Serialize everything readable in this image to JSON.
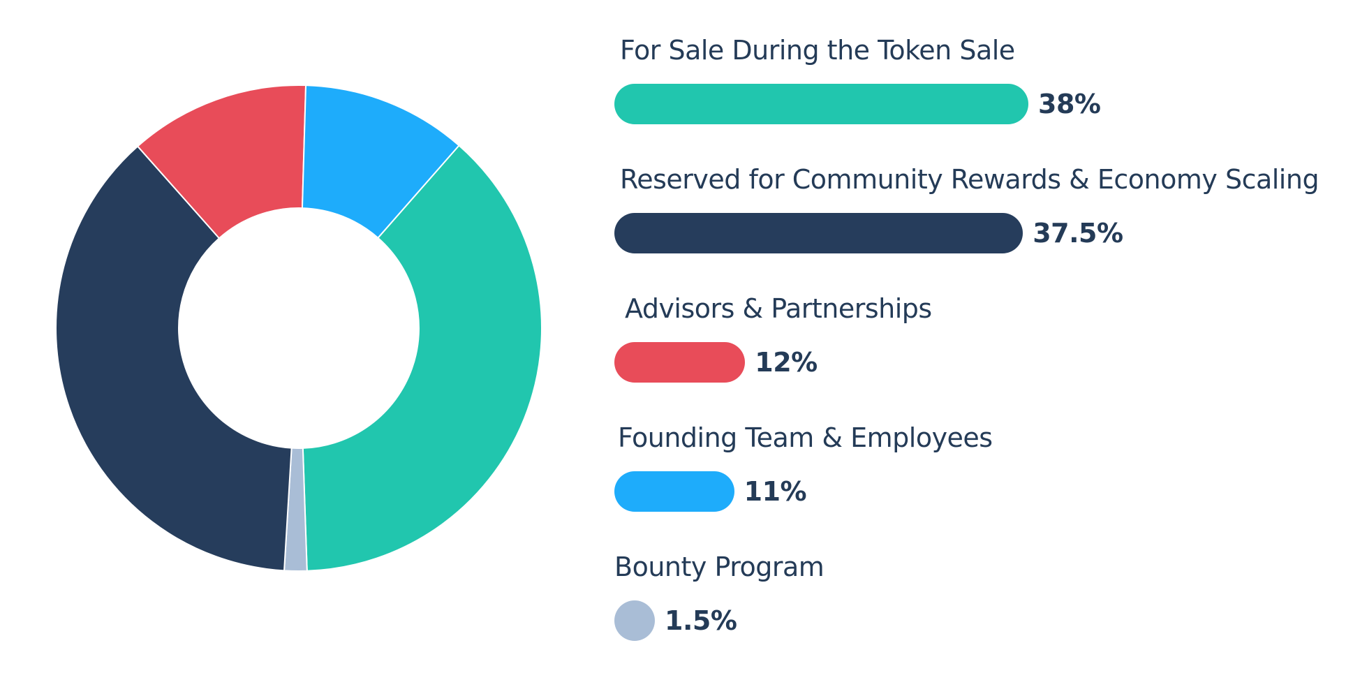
{
  "chart_data": {
    "type": "pie",
    "series": [
      {
        "label": "For Sale During the Token Sale",
        "value": 38,
        "value_label": "38%",
        "color": "#21c6ae"
      },
      {
        "label": "Reserved for Community Rewards & Economy Scaling",
        "value": 37.5,
        "value_label": "37.5%",
        "color": "#263d5c"
      },
      {
        "label": "Advisors & Partnerships",
        "value": 12,
        "value_label": "12%",
        "color": "#e84c59"
      },
      {
        "label": "Founding Team & Employees",
        "value": 11,
        "value_label": "11%",
        "color": "#1eacfb"
      },
      {
        "label": "Bounty Program",
        "value": 1.5,
        "value_label": "1.5%",
        "color": "#a9bdd6"
      }
    ],
    "legend_placement": "right"
  }
}
